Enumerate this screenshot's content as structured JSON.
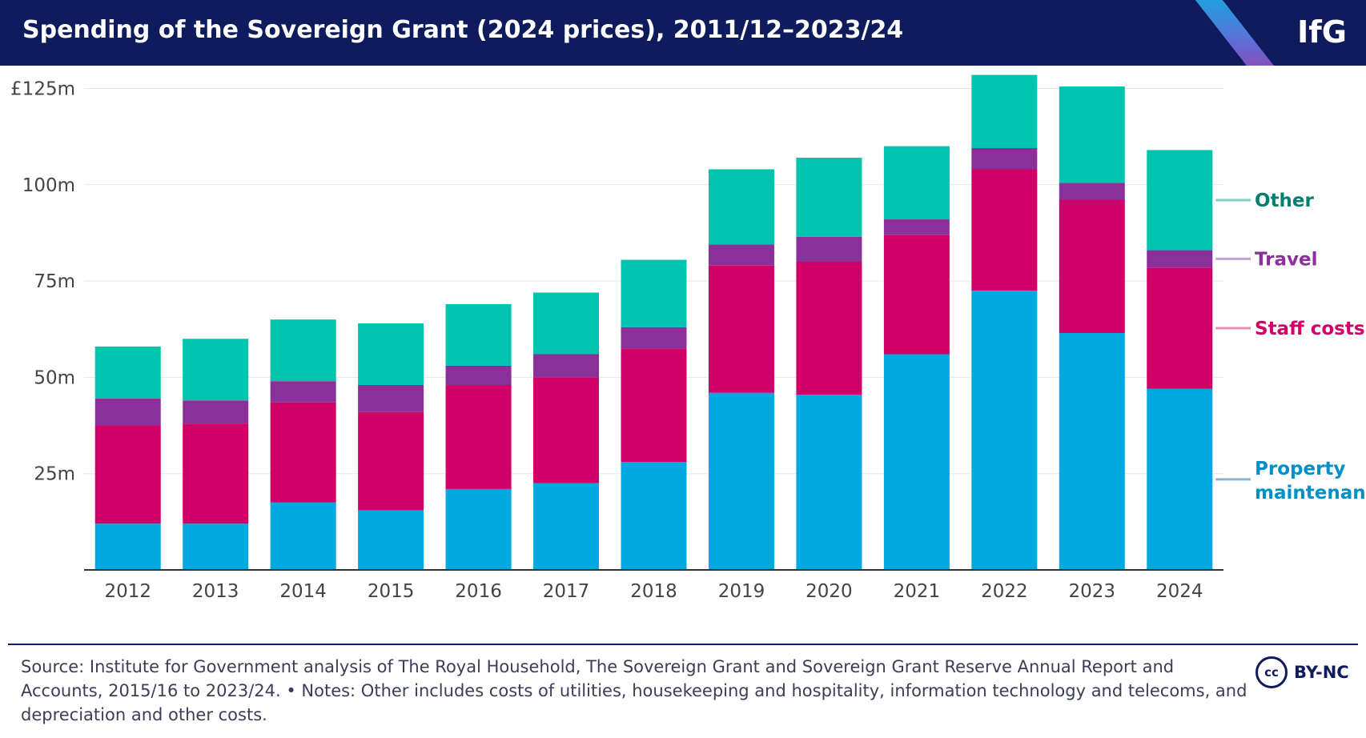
{
  "header": {
    "title": "Spending of the Sovereign Grant (2024 prices), 2011/12–2023/24",
    "logo": "IfG"
  },
  "chart_data": {
    "type": "bar",
    "stacked": true,
    "categories": [
      "2012",
      "2013",
      "2014",
      "2015",
      "2016",
      "2017",
      "2018",
      "2019",
      "2020",
      "2021",
      "2022",
      "2023",
      "2024"
    ],
    "series": [
      {
        "name": "Property maintenance",
        "color": "#00a9e0",
        "values": [
          12,
          12,
          17.5,
          15.5,
          21,
          22.5,
          28,
          46,
          45.5,
          56,
          72.5,
          61.5,
          47
        ]
      },
      {
        "name": "Staff costs",
        "color": "#d10069",
        "values": [
          25.5,
          26,
          26,
          25.5,
          27,
          27.5,
          29.5,
          33,
          34.5,
          31,
          31.5,
          34.5,
          31.5
        ]
      },
      {
        "name": "Travel",
        "color": "#8a3199",
        "values": [
          7,
          6,
          5.5,
          7,
          5,
          6,
          5.5,
          5.5,
          6.5,
          4,
          5.5,
          4.5,
          4.5
        ]
      },
      {
        "name": "Other",
        "color": "#00c4ae",
        "values": [
          13.5,
          16,
          16,
          16,
          16,
          16,
          17.5,
          19.5,
          20.5,
          19,
          19,
          25,
          26
        ]
      }
    ],
    "ylim": [
      0,
      128
    ],
    "yticks": [
      25,
      50,
      75,
      100,
      125
    ],
    "ytick_labels": [
      "25m",
      "50m",
      "75m",
      "100m",
      "£125m"
    ],
    "grid": true,
    "legend": "direct labels at right",
    "labels": [
      {
        "series": 3,
        "text": "Other",
        "color": "#00806f",
        "lead": "#7fcfc5"
      },
      {
        "series": 2,
        "text": "Travel",
        "color": "#8a3199",
        "lead": "#c49fd0"
      },
      {
        "series": 1,
        "text": "Staff costs",
        "color": "#d10069",
        "lead": "#e58cb4"
      },
      {
        "series": 0,
        "text": "Property maintenance",
        "line1": "Property",
        "line2": "maintenance",
        "color": "#0090c8",
        "lead": "#7fb8cc"
      }
    ]
  },
  "footer": {
    "source": "Source: Institute for Government analysis of The Royal Household, The Sovereign Grant and Sovereign Grant Reserve Annual Report and Accounts, 2015/16 to 2023/24. • Notes: Other includes costs of utilities, housekeeping and hospitality, information technology and telecoms, and depreciation and other costs.",
    "license_icon": "cc",
    "license": "BY-NC"
  }
}
